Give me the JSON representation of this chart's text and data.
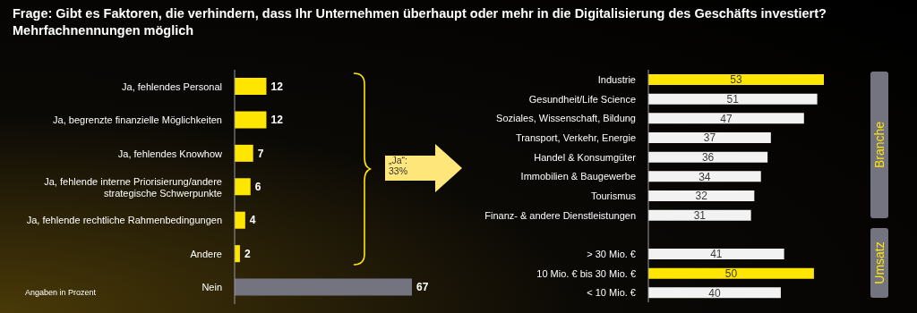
{
  "chart_data": [
    {
      "type": "bar",
      "orientation": "horizontal",
      "title": "Frage: Gibt es Faktoren, die verhindern, dass Ihr Unternehmen überhaupt oder mehr in die Digitalisierung des Geschäfts investiert?",
      "subtitle": "Mehrfachnennungen möglich",
      "categories": [
        "Ja, fehlendes Personal",
        "Ja, begrenzte finanzielle Möglichkeiten",
        "Ja, fehlendes Knowhow",
        "Ja, fehlende interne Priorisierung/andere strategische Schwerpunkte",
        "Ja, fehlende rechtliche Rahmenbedingungen",
        "Andere",
        "Nein"
      ],
      "values": [
        12,
        12,
        7,
        6,
        4,
        2,
        67
      ],
      "colors": [
        "#ffe600",
        "#ffe600",
        "#ffe600",
        "#ffe600",
        "#ffe600",
        "#ffe600",
        "#747480"
      ],
      "data_labels": true,
      "annotations": [
        "Angaben in Prozent",
        "„Ja“: 33%"
      ]
    },
    {
      "type": "bar",
      "orientation": "horizontal",
      "categories": [
        "Industrie",
        "Gesundheit/Life Science",
        "Soziales, Wissenschaft, Bildung",
        "Transport, Verkehr, Energie",
        "Handel & Konsumgüter",
        "Immobilien & Baugewerbe",
        "Tourismus",
        "Finanz- & andere Dienstleistungen",
        null,
        "> 30 Mio. €",
        "10 Mio. € bis 30 Mio. €",
        "< 10 Mio. €"
      ],
      "values": [
        53,
        51,
        47,
        37,
        36,
        34,
        32,
        31,
        null,
        41,
        50,
        40
      ],
      "colors": [
        "#ffe600",
        "#f2f2f2",
        "#f2f2f2",
        "#f2f2f2",
        "#f2f2f2",
        "#f2f2f2",
        "#f2f2f2",
        "#f2f2f2",
        "#f2f2f2",
        "#f2f2f2",
        "#ffe600",
        "#f2f2f2"
      ],
      "data_labels": true,
      "annotations": [
        "Branche",
        "Umsatz"
      ]
    }
  ]
}
